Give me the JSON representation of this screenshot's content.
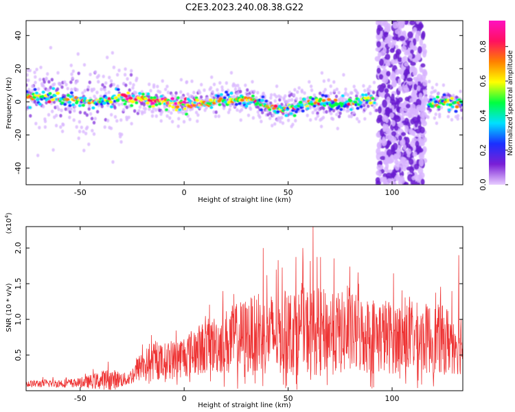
{
  "title": "C2E3.2023.240.08.38.G22",
  "chart_data": [
    {
      "type": "heatmap",
      "xlabel": "Height of straight line (km)",
      "ylabel": "Frequency (Hz)",
      "xlim": [
        -76,
        134
      ],
      "ylim": [
        -50,
        49
      ],
      "xticks": [
        -50,
        0,
        50,
        100
      ],
      "yticks": [
        -40,
        -20,
        0,
        20,
        40
      ],
      "colorbar": {
        "label": "Normalized spectral amplitude",
        "range": [
          0,
          0.95
        ],
        "ticks": [
          "0.0",
          "0.2",
          "0.4",
          "0.6",
          "0.8"
        ],
        "tick_values": [
          0,
          0.2,
          0.4,
          0.6,
          0.8
        ],
        "colormap": [
          "#e8ccff",
          "#7a1fd6",
          "#1a2fff",
          "#00e0ff",
          "#00ff40",
          "#ffff00",
          "#ff8000",
          "#ff1060",
          "#ff10c0"
        ]
      },
      "ridge": [
        {
          "x": -75,
          "freq": 3
        },
        {
          "x": -60,
          "freq": 2
        },
        {
          "x": -45,
          "freq": 0
        },
        {
          "x": -30,
          "freq": 3
        },
        {
          "x": -15,
          "freq": 0
        },
        {
          "x": 0,
          "freq": -1
        },
        {
          "x": 15,
          "freq": 0
        },
        {
          "x": 30,
          "freq": 2
        },
        {
          "x": 45,
          "freq": -5
        },
        {
          "x": 60,
          "freq": 0
        },
        {
          "x": 75,
          "freq": -1
        },
        {
          "x": 90,
          "freq": 1
        },
        {
          "x": 118,
          "freq": -1
        },
        {
          "x": 133,
          "freq": 0
        }
      ],
      "noise_band": {
        "x_range": [
          93,
          116
        ],
        "freq_range": [
          -50,
          49
        ]
      }
    },
    {
      "type": "line",
      "xlabel": "Height of straight line (km)",
      "ylabel": "SNR (10 * v/v)",
      "y_scale_label": "(x10",
      "y_scale_exponent": "4",
      "y_scale_close": ")",
      "xlim": [
        -76,
        134
      ],
      "ylim": [
        0,
        23000
      ],
      "xticks": [
        -50,
        0,
        50,
        100
      ],
      "yticks": [
        5000,
        10000,
        15000,
        20000
      ],
      "ytick_labels": [
        "0.5",
        "1.0",
        "1.5",
        "2.0"
      ],
      "color": "#ee3333",
      "envelope": [
        {
          "x": -76,
          "baseline": 800,
          "spread": 1000
        },
        {
          "x": -50,
          "baseline": 900,
          "spread": 1300
        },
        {
          "x": -36,
          "baseline": 1100,
          "spread": 3200
        },
        {
          "x": -27,
          "baseline": 1300,
          "spread": 1700
        },
        {
          "x": -20,
          "baseline": 3000,
          "spread": 4500
        },
        {
          "x": -5,
          "baseline": 3500,
          "spread": 5500
        },
        {
          "x": 10,
          "baseline": 5000,
          "spread": 7500
        },
        {
          "x": 30,
          "baseline": 6000,
          "spread": 11000
        },
        {
          "x": 60,
          "baseline": 6500,
          "spread": 12500
        },
        {
          "x": 100,
          "baseline": 6000,
          "spread": 10500
        },
        {
          "x": 134,
          "baseline": 5500,
          "spread": 9500
        }
      ],
      "peaks": [
        {
          "x": 62,
          "y": 23000
        },
        {
          "x": 38,
          "y": 20000
        },
        {
          "x": 57,
          "y": 20000
        },
        {
          "x": 132,
          "y": 19000
        }
      ]
    }
  ]
}
